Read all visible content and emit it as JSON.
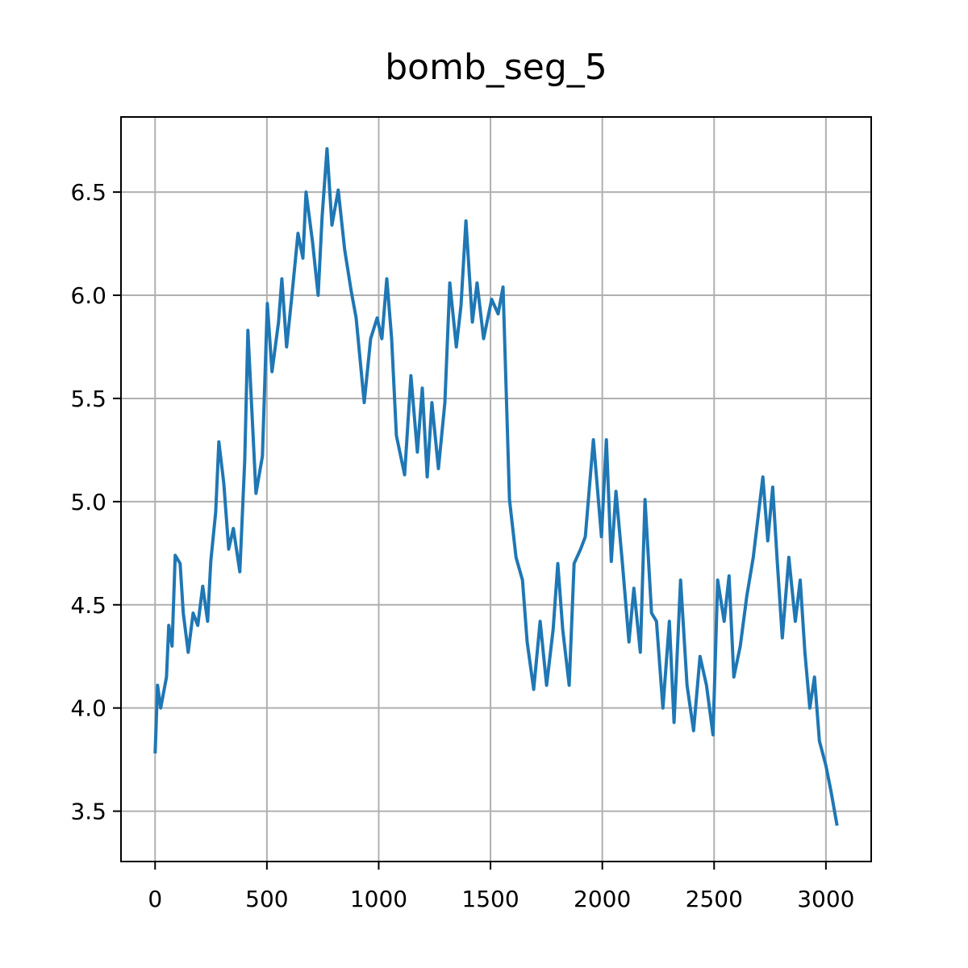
{
  "chart_data": {
    "type": "line",
    "title": "bomb_seg_5",
    "color": "#1f77b4",
    "grid": true,
    "x": [
      0,
      11,
      25,
      51,
      61,
      76,
      90,
      112,
      126,
      148,
      170,
      191,
      213,
      235,
      249,
      271,
      285,
      307,
      329,
      350,
      379,
      401,
      415,
      451,
      480,
      502,
      523,
      552,
      567,
      588,
      610,
      639,
      661,
      675,
      704,
      729,
      747,
      769,
      791,
      819,
      848,
      877,
      899,
      935,
      964,
      993,
      1014,
      1036,
      1058,
      1079,
      1116,
      1144,
      1173,
      1195,
      1217,
      1238,
      1267,
      1296,
      1318,
      1347,
      1368,
      1390,
      1419,
      1440,
      1469,
      1505,
      1534,
      1556,
      1585,
      1614,
      1643,
      1664,
      1693,
      1722,
      1751,
      1780,
      1801,
      1823,
      1852,
      1874,
      1903,
      1924,
      1960,
      1996,
      2018,
      2040,
      2061,
      2090,
      2119,
      2141,
      2170,
      2191,
      2220,
      2242,
      2271,
      2300,
      2321,
      2350,
      2379,
      2408,
      2437,
      2466,
      2495,
      2516,
      2545,
      2567,
      2588,
      2617,
      2646,
      2675,
      2697,
      2718,
      2740,
      2762,
      2783,
      2805,
      2834,
      2863,
      2885,
      2906,
      2928,
      2949,
      2971,
      3000,
      3022,
      3050
    ],
    "values": [
      3.78,
      4.11,
      4.0,
      4.15,
      4.4,
      4.3,
      4.74,
      4.7,
      4.46,
      4.27,
      4.46,
      4.4,
      4.59,
      4.42,
      4.71,
      4.95,
      5.29,
      5.09,
      4.77,
      4.87,
      4.66,
      5.2,
      5.83,
      5.04,
      5.22,
      5.96,
      5.63,
      5.87,
      6.08,
      5.75,
      5.98,
      6.3,
      6.18,
      6.5,
      6.26,
      6.0,
      6.38,
      6.71,
      6.34,
      6.51,
      6.22,
      6.02,
      5.89,
      5.48,
      5.79,
      5.89,
      5.79,
      6.08,
      5.79,
      5.32,
      5.13,
      5.61,
      5.24,
      5.55,
      5.12,
      5.48,
      5.16,
      5.48,
      6.06,
      5.75,
      5.95,
      6.36,
      5.87,
      6.06,
      5.79,
      5.98,
      5.91,
      6.04,
      5.01,
      4.73,
      4.62,
      4.32,
      4.09,
      4.42,
      4.11,
      4.38,
      4.7,
      4.38,
      4.11,
      4.7,
      4.77,
      4.83,
      5.3,
      4.83,
      5.3,
      4.71,
      5.05,
      4.7,
      4.32,
      4.58,
      4.27,
      5.01,
      4.46,
      4.42,
      4.0,
      4.42,
      3.93,
      4.62,
      4.11,
      3.89,
      4.25,
      4.11,
      3.87,
      4.62,
      4.42,
      4.64,
      4.15,
      4.3,
      4.54,
      4.73,
      4.93,
      5.12,
      4.81,
      5.07,
      4.7,
      4.34,
      4.73,
      4.42,
      4.62,
      4.27,
      4.0,
      4.15,
      3.84,
      3.72,
      3.6,
      3.43
    ],
    "xlim": [
      -152.5,
      3202.5
    ],
    "xticks": [
      0,
      500,
      1000,
      1500,
      2000,
      2500,
      3000
    ],
    "ylim": [
      3.256,
      6.864
    ],
    "yticks": [
      3.5,
      {
        "value": 4,
        "label": "4.0"
      },
      4.5,
      {
        "value": 5,
        "label": "5.0"
      },
      5.5,
      {
        "value": 6,
        "label": "6.0"
      },
      6.5
    ]
  }
}
